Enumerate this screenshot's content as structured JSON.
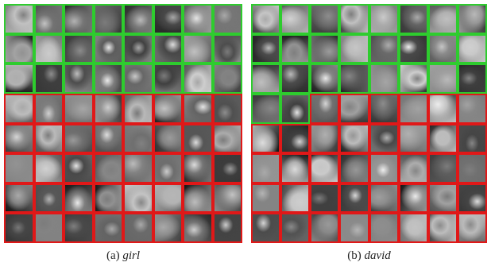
{
  "figure": {
    "panels": [
      {
        "id": "a",
        "caption_prefix": "(a)",
        "caption_name": "girl",
        "rows": 8,
        "cols": 8,
        "positive_rows": 3,
        "positive_extra_cells": 0
      },
      {
        "id": "b",
        "caption_prefix": "(b)",
        "caption_name": "david",
        "rows": 8,
        "cols": 8,
        "positive_rows": 3,
        "positive_extra_cells": 2
      }
    ],
    "colors": {
      "positive_border": "#2ecc2e",
      "negative_border": "#e01818"
    }
  }
}
